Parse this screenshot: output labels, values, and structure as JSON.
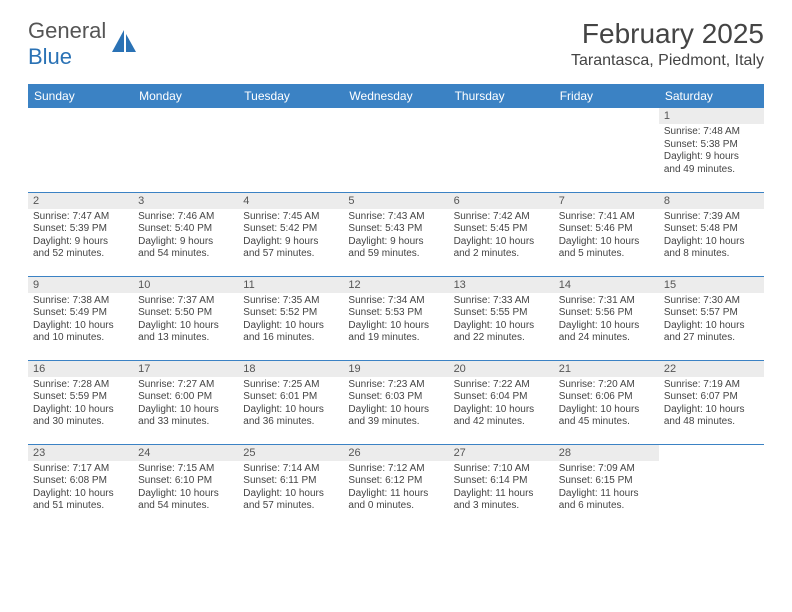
{
  "logo": {
    "text1": "General",
    "text2": "Blue"
  },
  "title": "February 2025",
  "location": "Tarantasca, Piedmont, Italy",
  "header_color": "#3b82c4",
  "day_headers": [
    "Sunday",
    "Monday",
    "Tuesday",
    "Wednesday",
    "Thursday",
    "Friday",
    "Saturday"
  ],
  "days": {
    "1": {
      "sunrise": "Sunrise: 7:48 AM",
      "sunset": "Sunset: 5:38 PM",
      "day1": "Daylight: 9 hours",
      "day2": "and 49 minutes."
    },
    "2": {
      "sunrise": "Sunrise: 7:47 AM",
      "sunset": "Sunset: 5:39 PM",
      "day1": "Daylight: 9 hours",
      "day2": "and 52 minutes."
    },
    "3": {
      "sunrise": "Sunrise: 7:46 AM",
      "sunset": "Sunset: 5:40 PM",
      "day1": "Daylight: 9 hours",
      "day2": "and 54 minutes."
    },
    "4": {
      "sunrise": "Sunrise: 7:45 AM",
      "sunset": "Sunset: 5:42 PM",
      "day1": "Daylight: 9 hours",
      "day2": "and 57 minutes."
    },
    "5": {
      "sunrise": "Sunrise: 7:43 AM",
      "sunset": "Sunset: 5:43 PM",
      "day1": "Daylight: 9 hours",
      "day2": "and 59 minutes."
    },
    "6": {
      "sunrise": "Sunrise: 7:42 AM",
      "sunset": "Sunset: 5:45 PM",
      "day1": "Daylight: 10 hours",
      "day2": "and 2 minutes."
    },
    "7": {
      "sunrise": "Sunrise: 7:41 AM",
      "sunset": "Sunset: 5:46 PM",
      "day1": "Daylight: 10 hours",
      "day2": "and 5 minutes."
    },
    "8": {
      "sunrise": "Sunrise: 7:39 AM",
      "sunset": "Sunset: 5:48 PM",
      "day1": "Daylight: 10 hours",
      "day2": "and 8 minutes."
    },
    "9": {
      "sunrise": "Sunrise: 7:38 AM",
      "sunset": "Sunset: 5:49 PM",
      "day1": "Daylight: 10 hours",
      "day2": "and 10 minutes."
    },
    "10": {
      "sunrise": "Sunrise: 7:37 AM",
      "sunset": "Sunset: 5:50 PM",
      "day1": "Daylight: 10 hours",
      "day2": "and 13 minutes."
    },
    "11": {
      "sunrise": "Sunrise: 7:35 AM",
      "sunset": "Sunset: 5:52 PM",
      "day1": "Daylight: 10 hours",
      "day2": "and 16 minutes."
    },
    "12": {
      "sunrise": "Sunrise: 7:34 AM",
      "sunset": "Sunset: 5:53 PM",
      "day1": "Daylight: 10 hours",
      "day2": "and 19 minutes."
    },
    "13": {
      "sunrise": "Sunrise: 7:33 AM",
      "sunset": "Sunset: 5:55 PM",
      "day1": "Daylight: 10 hours",
      "day2": "and 22 minutes."
    },
    "14": {
      "sunrise": "Sunrise: 7:31 AM",
      "sunset": "Sunset: 5:56 PM",
      "day1": "Daylight: 10 hours",
      "day2": "and 24 minutes."
    },
    "15": {
      "sunrise": "Sunrise: 7:30 AM",
      "sunset": "Sunset: 5:57 PM",
      "day1": "Daylight: 10 hours",
      "day2": "and 27 minutes."
    },
    "16": {
      "sunrise": "Sunrise: 7:28 AM",
      "sunset": "Sunset: 5:59 PM",
      "day1": "Daylight: 10 hours",
      "day2": "and 30 minutes."
    },
    "17": {
      "sunrise": "Sunrise: 7:27 AM",
      "sunset": "Sunset: 6:00 PM",
      "day1": "Daylight: 10 hours",
      "day2": "and 33 minutes."
    },
    "18": {
      "sunrise": "Sunrise: 7:25 AM",
      "sunset": "Sunset: 6:01 PM",
      "day1": "Daylight: 10 hours",
      "day2": "and 36 minutes."
    },
    "19": {
      "sunrise": "Sunrise: 7:23 AM",
      "sunset": "Sunset: 6:03 PM",
      "day1": "Daylight: 10 hours",
      "day2": "and 39 minutes."
    },
    "20": {
      "sunrise": "Sunrise: 7:22 AM",
      "sunset": "Sunset: 6:04 PM",
      "day1": "Daylight: 10 hours",
      "day2": "and 42 minutes."
    },
    "21": {
      "sunrise": "Sunrise: 7:20 AM",
      "sunset": "Sunset: 6:06 PM",
      "day1": "Daylight: 10 hours",
      "day2": "and 45 minutes."
    },
    "22": {
      "sunrise": "Sunrise: 7:19 AM",
      "sunset": "Sunset: 6:07 PM",
      "day1": "Daylight: 10 hours",
      "day2": "and 48 minutes."
    },
    "23": {
      "sunrise": "Sunrise: 7:17 AM",
      "sunset": "Sunset: 6:08 PM",
      "day1": "Daylight: 10 hours",
      "day2": "and 51 minutes."
    },
    "24": {
      "sunrise": "Sunrise: 7:15 AM",
      "sunset": "Sunset: 6:10 PM",
      "day1": "Daylight: 10 hours",
      "day2": "and 54 minutes."
    },
    "25": {
      "sunrise": "Sunrise: 7:14 AM",
      "sunset": "Sunset: 6:11 PM",
      "day1": "Daylight: 10 hours",
      "day2": "and 57 minutes."
    },
    "26": {
      "sunrise": "Sunrise: 7:12 AM",
      "sunset": "Sunset: 6:12 PM",
      "day1": "Daylight: 11 hours",
      "day2": "and 0 minutes."
    },
    "27": {
      "sunrise": "Sunrise: 7:10 AM",
      "sunset": "Sunset: 6:14 PM",
      "day1": "Daylight: 11 hours",
      "day2": "and 3 minutes."
    },
    "28": {
      "sunrise": "Sunrise: 7:09 AM",
      "sunset": "Sunset: 6:15 PM",
      "day1": "Daylight: 11 hours",
      "day2": "and 6 minutes."
    }
  },
  "grid": [
    [
      null,
      null,
      null,
      null,
      null,
      null,
      "1"
    ],
    [
      "2",
      "3",
      "4",
      "5",
      "6",
      "7",
      "8"
    ],
    [
      "9",
      "10",
      "11",
      "12",
      "13",
      "14",
      "15"
    ],
    [
      "16",
      "17",
      "18",
      "19",
      "20",
      "21",
      "22"
    ],
    [
      "23",
      "24",
      "25",
      "26",
      "27",
      "28",
      null
    ]
  ]
}
